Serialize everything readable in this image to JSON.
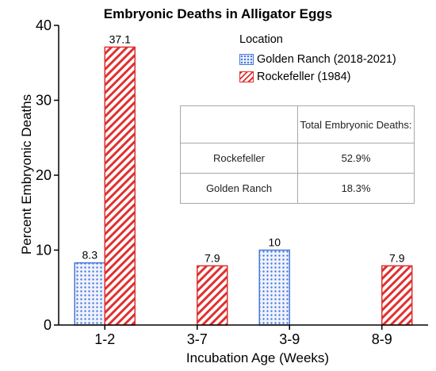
{
  "chart_data": {
    "type": "bar",
    "title": "Embryonic Deaths in Alligator Eggs",
    "xlabel": "Incubation Age (Weeks)",
    "ylabel": "Percent Embryonic Deaths",
    "categories": [
      "1-2",
      "3-7",
      "3-9",
      "8-9"
    ],
    "ylim": [
      0,
      40
    ],
    "yticks": [
      0,
      10,
      20,
      30,
      40
    ],
    "legend_title": "Location",
    "legend_position": "top-right",
    "series": [
      {
        "name": "Golden Ranch (2018-2021)",
        "values": [
          8.3,
          null,
          10,
          null
        ],
        "value_labels": [
          "8.3",
          "",
          "10",
          ""
        ],
        "color": "#4a78d6",
        "pattern": "dots"
      },
      {
        "name": "Rockefeller (1984)",
        "values": [
          37.1,
          7.9,
          null,
          7.9
        ],
        "value_labels": [
          "37.1",
          "7.9",
          "",
          "7.9"
        ],
        "color": "#e03030",
        "pattern": "diagonal-hatch"
      }
    ],
    "grid": false
  },
  "summary_table": {
    "header": [
      "",
      "Total Embryonic Deaths:"
    ],
    "rows": [
      [
        "Rockefeller",
        "52.9%"
      ],
      [
        "Golden Ranch",
        "18.3%"
      ]
    ]
  }
}
